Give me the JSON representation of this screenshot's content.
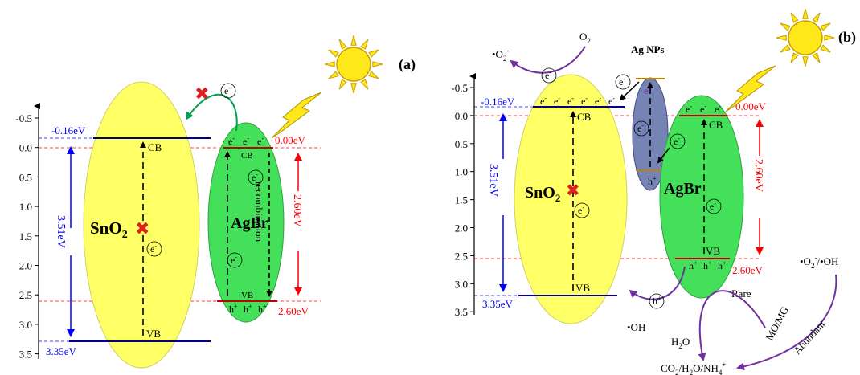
{
  "colors": {
    "sno2_fill": "#ffff66",
    "agbr_fill": "#44e05a",
    "agnp_fill": "#7684b5",
    "sun": "#ffe81a",
    "blue": "#0000ff",
    "red": "#ff0000",
    "green_arrow": "#00a050",
    "purple_arrow": "#7030a0",
    "band_blue": "#00008b",
    "band_red": "#c00000"
  },
  "panel_a": {
    "label": "(a)",
    "y_ticks": [
      "-0.5",
      "0.0",
      "0.5",
      "1.0",
      "1.5",
      "2.0",
      "2.5",
      "3.0",
      "3.5"
    ],
    "sno2": {
      "name": "SnO",
      "sub": "2",
      "cb_label": "CB",
      "vb_label": "VB",
      "cb_energy": "-0.16eV",
      "vb_energy": "3.35eV",
      "gap": "3.51eV",
      "electron": "e",
      "blocked_mark": "✖"
    },
    "agbr": {
      "name": "AgBr",
      "cb_label": "CB",
      "vb_label": "VB",
      "cb_energy": "0.00eV",
      "vb_energy": "2.60eV",
      "gap": "2.60eV",
      "recombination": "recombination",
      "electron": "e",
      "electrons": [
        "e",
        "e",
        "e"
      ],
      "holes": [
        "h",
        "h",
        "h"
      ],
      "hole_sup": "+",
      "electron_sup": "-"
    },
    "transfer_electron": "e"
  },
  "panel_b": {
    "label": "(b)",
    "y_ticks": [
      "-0.5",
      "0.0",
      "0.5",
      "1.0",
      "1.5",
      "2.0",
      "2.5",
      "3.0",
      "3.5"
    ],
    "o2": "O",
    "o2_sub": "2",
    "superoxide": "•O",
    "superoxide_sub": "2",
    "superoxide_sup": "-",
    "ag_nps": "Ag NPs",
    "sno2": {
      "name": "SnO",
      "sub": "2",
      "cb_label": "CB",
      "vb_label": "VB",
      "cb_energy": "-0.16eV",
      "vb_energy": "3.35eV",
      "gap": "3.51eV",
      "electron": "e",
      "electrons": [
        "e",
        "e",
        "e",
        "e",
        "e",
        "e"
      ]
    },
    "agnp": {
      "electron": "e",
      "hole": "h",
      "hole_sup": "+"
    },
    "agbr": {
      "name": "AgBr",
      "cb_label": "CB",
      "vb_label": "VB",
      "cb_energy": "0.00eV",
      "vb_energy": "2.60eV",
      "gap": "2.60eV",
      "electron": "e",
      "electrons": [
        "e",
        "e",
        "e"
      ],
      "holes": [
        "h",
        "h",
        "h"
      ],
      "hole_sup": "+"
    },
    "oh_radical": "•OH",
    "h2o": "H",
    "h2o_sub": "2",
    "h2o_tail": "O",
    "hole": "h",
    "hole_sup": "+",
    "rare": "Rare",
    "abundant": "Abundant",
    "dye": "MO/MG",
    "radicals_label": "•O",
    "radicals_sub": "2",
    "radicals_sup": "-",
    "radicals_tail": "/•OH",
    "products": "CO",
    "products_sub1": "2",
    "products_mid": "/H",
    "products_sub2": "2",
    "products_mid2": "O/NH",
    "products_sub3": "4",
    "products_sup": "+"
  }
}
